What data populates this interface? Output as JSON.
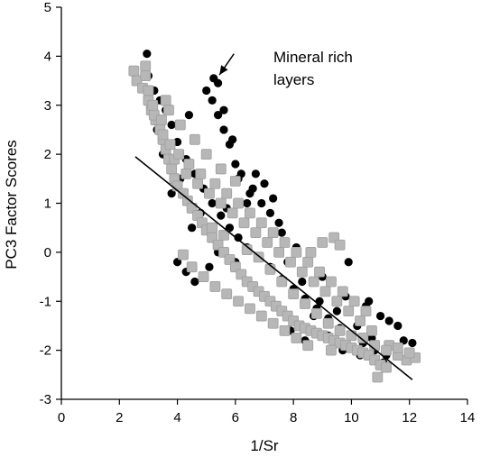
{
  "chart_data": {
    "type": "scatter",
    "xlabel": "1/Sr",
    "ylabel": "PC3 Factor Scores",
    "xlim": [
      0,
      14
    ],
    "ylim": [
      -3,
      5
    ],
    "x_ticks": [
      0,
      2,
      4,
      6,
      8,
      10,
      12,
      14
    ],
    "y_ticks": [
      -3,
      -2,
      -1,
      0,
      1,
      2,
      3,
      4,
      5
    ],
    "grid": false,
    "legend": "none",
    "annotation": {
      "line1": "Mineral rich",
      "line2": "layers",
      "arrow_from": [
        5.95,
        4.05
      ],
      "arrow_to": [
        5.45,
        3.62
      ]
    },
    "trendline": {
      "x": [
        2.55,
        12.1
      ],
      "y": [
        1.95,
        -2.6
      ]
    },
    "series": [
      {
        "marker": "circle",
        "color": "#000000",
        "points": [
          [
            2.95,
            4.05
          ],
          [
            2.9,
            3.8
          ],
          [
            3.0,
            3.6
          ],
          [
            3.2,
            3.3
          ],
          [
            3.4,
            3.1
          ],
          [
            3.6,
            2.9
          ],
          [
            3.8,
            2.6
          ],
          [
            4.0,
            2.25
          ],
          [
            4.3,
            1.9
          ],
          [
            4.6,
            1.6
          ],
          [
            4.9,
            1.3
          ],
          [
            5.2,
            1.0
          ],
          [
            5.5,
            0.75
          ],
          [
            5.8,
            0.5
          ],
          [
            6.1,
            0.3
          ],
          [
            6.4,
            0.1
          ],
          [
            6.8,
            -0.1
          ],
          [
            7.2,
            -0.3
          ],
          [
            7.6,
            -0.55
          ],
          [
            8.0,
            -0.75
          ],
          [
            8.4,
            -0.95
          ],
          [
            8.8,
            -1.15
          ],
          [
            9.2,
            -1.35
          ],
          [
            9.6,
            -1.55
          ],
          [
            10.0,
            -1.7
          ],
          [
            10.4,
            -1.85
          ],
          [
            10.8,
            -2.0
          ],
          [
            11.2,
            -2.1
          ],
          [
            11.8,
            -1.8
          ],
          [
            12.1,
            -1.85
          ],
          [
            11.6,
            -1.5
          ],
          [
            11.0,
            -1.3
          ],
          [
            10.5,
            -1.1
          ],
          [
            9.8,
            -0.9
          ],
          [
            9.0,
            -0.5
          ],
          [
            8.5,
            -0.2
          ],
          [
            8.1,
            0.1
          ],
          [
            7.6,
            0.4
          ],
          [
            7.2,
            0.8
          ],
          [
            6.9,
            1.0
          ],
          [
            6.6,
            1.3
          ],
          [
            6.4,
            1.0
          ],
          [
            6.2,
            1.6
          ],
          [
            6.0,
            1.8
          ],
          [
            5.8,
            2.2
          ],
          [
            5.6,
            2.5
          ],
          [
            5.4,
            2.8
          ],
          [
            5.2,
            3.1
          ],
          [
            5.4,
            3.45
          ],
          [
            5.25,
            3.55
          ],
          [
            5.0,
            3.3
          ],
          [
            5.6,
            2.9
          ],
          [
            6.1,
            1.5
          ],
          [
            5.9,
            2.3
          ],
          [
            6.5,
            1.2
          ],
          [
            7.3,
            1.1
          ],
          [
            7.5,
            0.6
          ],
          [
            7.1,
            0.2
          ],
          [
            7.8,
            -0.2
          ],
          [
            8.3,
            -0.6
          ],
          [
            8.9,
            -1.0
          ],
          [
            9.5,
            -1.2
          ],
          [
            10.2,
            -1.5
          ],
          [
            10.7,
            -1.75
          ],
          [
            11.1,
            -2.25
          ],
          [
            10.3,
            -2.1
          ],
          [
            9.7,
            -2.0
          ],
          [
            9.2,
            -1.7
          ],
          [
            8.7,
            -1.3
          ],
          [
            4.0,
            -0.2
          ],
          [
            4.3,
            -0.4
          ],
          [
            4.6,
            -0.6
          ],
          [
            5.1,
            -0.3
          ],
          [
            5.4,
            0.0
          ],
          [
            4.5,
            0.5
          ],
          [
            4.8,
            0.8
          ],
          [
            3.8,
            1.2
          ],
          [
            4.1,
            1.5
          ],
          [
            5.7,
            0.9
          ],
          [
            6.3,
            0.6
          ],
          [
            6.0,
            -0.2
          ],
          [
            3.5,
            2.0
          ],
          [
            3.3,
            2.5
          ],
          [
            4.4,
            2.8
          ],
          [
            6.7,
            1.6
          ],
          [
            7.0,
            1.4
          ],
          [
            9.9,
            -0.2
          ],
          [
            10.6,
            -1.0
          ],
          [
            11.3,
            -1.4
          ],
          [
            8.4,
            -1.8
          ],
          [
            7.9,
            -1.6
          ]
        ]
      },
      {
        "marker": "square",
        "color": "#b7b7b7",
        "points": [
          [
            2.5,
            3.7
          ],
          [
            2.6,
            3.5
          ],
          [
            2.9,
            3.8
          ],
          [
            2.8,
            3.35
          ],
          [
            3.0,
            3.1
          ],
          [
            3.1,
            2.9
          ],
          [
            3.25,
            2.7
          ],
          [
            3.4,
            2.5
          ],
          [
            3.5,
            2.3
          ],
          [
            3.6,
            2.1
          ],
          [
            3.7,
            1.9
          ],
          [
            3.8,
            1.7
          ],
          [
            3.9,
            1.5
          ],
          [
            4.0,
            1.35
          ],
          [
            4.2,
            1.2
          ],
          [
            4.35,
            1.05
          ],
          [
            4.5,
            0.9
          ],
          [
            4.7,
            0.75
          ],
          [
            4.85,
            0.6
          ],
          [
            5.0,
            0.45
          ],
          [
            5.2,
            0.3
          ],
          [
            5.4,
            0.15
          ],
          [
            5.6,
            0.0
          ],
          [
            5.8,
            -0.15
          ],
          [
            6.0,
            -0.3
          ],
          [
            6.2,
            -0.45
          ],
          [
            6.4,
            -0.6
          ],
          [
            6.6,
            -0.7
          ],
          [
            6.8,
            -0.8
          ],
          [
            7.0,
            -0.9
          ],
          [
            7.2,
            -1.0
          ],
          [
            7.4,
            -1.1
          ],
          [
            7.6,
            -1.2
          ],
          [
            7.8,
            -1.3
          ],
          [
            8.0,
            -1.4
          ],
          [
            8.2,
            -1.5
          ],
          [
            8.4,
            -1.55
          ],
          [
            8.6,
            -1.6
          ],
          [
            8.8,
            -1.65
          ],
          [
            9.0,
            -1.7
          ],
          [
            9.2,
            -1.75
          ],
          [
            9.4,
            -1.8
          ],
          [
            9.6,
            -1.85
          ],
          [
            9.8,
            -1.9
          ],
          [
            10.0,
            -1.95
          ],
          [
            10.2,
            -2.0
          ],
          [
            10.4,
            -2.05
          ],
          [
            10.6,
            -2.1
          ],
          [
            10.8,
            -2.2
          ],
          [
            11.0,
            -2.3
          ],
          [
            11.2,
            -2.35
          ],
          [
            10.9,
            -2.55
          ],
          [
            11.9,
            -2.2
          ],
          [
            12.2,
            -2.15
          ],
          [
            11.6,
            -2.1
          ],
          [
            11.3,
            -1.9
          ],
          [
            10.7,
            -1.6
          ],
          [
            10.3,
            -1.4
          ],
          [
            9.9,
            -1.2
          ],
          [
            9.5,
            -1.0
          ],
          [
            9.1,
            -0.8
          ],
          [
            8.7,
            -0.6
          ],
          [
            8.3,
            -0.4
          ],
          [
            7.9,
            -0.2
          ],
          [
            7.5,
            0.0
          ],
          [
            7.1,
            0.2
          ],
          [
            6.7,
            0.4
          ],
          [
            6.3,
            0.6
          ],
          [
            5.9,
            0.8
          ],
          [
            5.5,
            1.0
          ],
          [
            5.1,
            1.2
          ],
          [
            4.7,
            1.4
          ],
          [
            4.3,
            1.6
          ],
          [
            3.9,
            1.9
          ],
          [
            3.5,
            2.4
          ],
          [
            3.2,
            2.8
          ],
          [
            3.0,
            3.3
          ],
          [
            2.9,
            3.6
          ],
          [
            3.15,
            3.0
          ],
          [
            3.45,
            2.7
          ],
          [
            3.75,
            2.2
          ],
          [
            4.05,
            2.0
          ],
          [
            4.4,
            1.8
          ],
          [
            4.8,
            1.6
          ],
          [
            5.3,
            1.4
          ],
          [
            5.7,
            1.2
          ],
          [
            6.1,
            1.0
          ],
          [
            6.5,
            0.8
          ],
          [
            6.9,
            0.6
          ],
          [
            7.3,
            0.4
          ],
          [
            7.7,
            0.2
          ],
          [
            8.1,
            0.0
          ],
          [
            8.5,
            -0.2
          ],
          [
            8.9,
            -0.4
          ],
          [
            9.3,
            -0.6
          ],
          [
            9.7,
            -0.8
          ],
          [
            10.1,
            -1.0
          ],
          [
            10.5,
            -1.2
          ],
          [
            9.0,
            0.2
          ],
          [
            9.4,
            0.3
          ],
          [
            9.6,
            0.15
          ],
          [
            8.6,
            0.0
          ],
          [
            4.2,
            -0.05
          ],
          [
            4.5,
            -0.3
          ],
          [
            4.9,
            -0.5
          ],
          [
            5.3,
            -0.7
          ],
          [
            5.7,
            -0.85
          ],
          [
            6.1,
            -1.0
          ],
          [
            6.5,
            -1.15
          ],
          [
            6.9,
            -1.3
          ],
          [
            7.3,
            -1.45
          ],
          [
            7.7,
            -1.6
          ],
          [
            8.1,
            -1.75
          ],
          [
            8.5,
            -1.9
          ],
          [
            9.3,
            -2.0
          ],
          [
            4.6,
            2.3
          ],
          [
            4.1,
            2.6
          ],
          [
            3.7,
            2.9
          ],
          [
            3.6,
            3.1
          ],
          [
            5.0,
            2.0
          ],
          [
            5.5,
            1.7
          ],
          [
            6.0,
            1.45
          ],
          [
            5.2,
            0.5
          ],
          [
            5.6,
            0.35
          ],
          [
            6.4,
            0.05
          ],
          [
            6.8,
            -0.1
          ],
          [
            7.2,
            -0.35
          ],
          [
            7.6,
            -0.6
          ],
          [
            8.0,
            -0.85
          ],
          [
            8.4,
            -1.05
          ],
          [
            8.8,
            -1.25
          ],
          [
            9.2,
            -1.45
          ],
          [
            9.6,
            -1.6
          ],
          [
            10.0,
            -1.7
          ],
          [
            10.4,
            -1.75
          ],
          [
            10.8,
            -1.9
          ],
          [
            11.2,
            -2.0
          ],
          [
            11.6,
            -1.95
          ],
          [
            12.0,
            -2.05
          ]
        ]
      }
    ]
  }
}
